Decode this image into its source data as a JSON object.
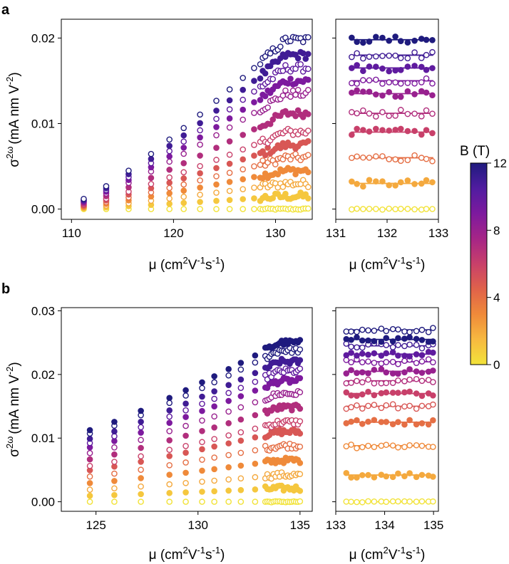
{
  "panels": [
    {
      "label": "a"
    },
    {
      "label": "b"
    }
  ],
  "axis_titles": {
    "ylabel_main": "σ",
    "ylabel_sup": "2ω",
    "ylabel_unit": "(mA nm V",
    "ylabel_unit_sup": "-2",
    "ylabel_close": ")",
    "xlabel_mu": "μ (cm",
    "xlabel_sup1": "2",
    "xlabel_mid1": "V",
    "xlabel_sup2": "-1",
    "xlabel_mid2": "s",
    "xlabel_sup3": "-1",
    "xlabel_close": ")"
  },
  "colorbar": {
    "title": "B (T)",
    "ticks": [
      "0",
      "4",
      "8",
      "12"
    ],
    "tick_values": [
      0,
      4,
      8,
      12
    ],
    "range": [
      0,
      12
    ],
    "colors": [
      "#f2e33a",
      "#f7b940",
      "#ef8a3a",
      "#e0624a",
      "#c8406a",
      "#a62587",
      "#7d1a9e",
      "#501ca0",
      "#1f1b7e"
    ]
  },
  "chart_data": [
    {
      "panel": "a",
      "side": "main",
      "type": "scatter",
      "xlim": [
        109,
        133.6
      ],
      "ylim": [
        -0.0012,
        0.0222
      ],
      "xticks": [
        110,
        120,
        130
      ],
      "xtick_labels": [
        "110",
        "120",
        "130"
      ],
      "yticks": [
        0,
        0.01,
        0.02
      ],
      "ytick_labels": [
        "0.00",
        "0.01",
        "0.02"
      ],
      "B_levels": [
        0,
        1,
        2,
        3,
        4,
        5,
        6,
        7,
        8,
        9,
        10,
        11,
        12
      ],
      "x_sparse": [
        111.2,
        113.4,
        115.6,
        117.8,
        119.6,
        121.0,
        122.6,
        124.2,
        125.5,
        126.8,
        127.9
      ],
      "x_dense_range": [
        128.5,
        133.2
      ],
      "x_dense_count": 20,
      "plateau_values": [
        0.0,
        0.0015,
        0.003,
        0.0045,
        0.006,
        0.0075,
        0.009,
        0.0112,
        0.0135,
        0.015,
        0.0165,
        0.018,
        0.0198
      ],
      "sparse_slope_start": 111.2,
      "sparse_slope_end": 131.0,
      "sparse_min_fraction": 0.06
    },
    {
      "panel": "a",
      "side": "right",
      "type": "scatter_with_fit",
      "xlim": [
        131,
        133
      ],
      "ylim": [
        -0.0012,
        0.0222
      ],
      "xticks": [
        131,
        132,
        133
      ],
      "xtick_labels": [
        "131",
        "132",
        "133"
      ],
      "B_levels": [
        0,
        2,
        4,
        6,
        7,
        8,
        9,
        10,
        11,
        12
      ],
      "x_range": [
        131.3,
        132.9
      ],
      "count": 14,
      "fit_values": [
        0.0,
        0.003,
        0.006,
        0.009,
        0.0112,
        0.0135,
        0.015,
        0.0165,
        0.018,
        0.0198
      ]
    },
    {
      "panel": "b",
      "side": "main",
      "type": "scatter",
      "xlim": [
        123.3,
        135.6
      ],
      "ylim": [
        -0.0015,
        0.0305
      ],
      "xticks": [
        125,
        130,
        135
      ],
      "xtick_labels": [
        "125",
        "130",
        "135"
      ],
      "yticks": [
        0,
        0.01,
        0.02,
        0.03
      ],
      "ytick_labels": [
        "0.00",
        "0.01",
        "0.02",
        "0.03"
      ],
      "B_levels": [
        0,
        1,
        2,
        3,
        4,
        5,
        6,
        7,
        8,
        9,
        10,
        11,
        12,
        12.5
      ],
      "x_sparse": [
        124.7,
        125.9,
        127.2,
        128.6,
        129.4,
        130.2,
        130.8,
        131.5,
        132.1,
        132.8
      ],
      "x_dense_range": [
        133.3,
        135.0
      ],
      "x_dense_count": 18,
      "plateau_values": [
        0.0,
        0.0021,
        0.0042,
        0.0065,
        0.0088,
        0.011,
        0.0125,
        0.0148,
        0.017,
        0.019,
        0.0205,
        0.022,
        0.0238,
        0.025
      ],
      "sparse_slope_start": 124.7,
      "sparse_slope_end": 134.0,
      "sparse_min_fraction": 0.45
    },
    {
      "panel": "b",
      "side": "right",
      "type": "scatter_with_fit",
      "xlim": [
        133,
        135.1
      ],
      "ylim": [
        -0.0015,
        0.0305
      ],
      "xticks": [
        133,
        134,
        135
      ],
      "xtick_labels": [
        "133",
        "134",
        "135"
      ],
      "B_levels": [
        0,
        2,
        3,
        4,
        5,
        6,
        7,
        8,
        9,
        10,
        11,
        12,
        12.5
      ],
      "x_range": [
        133.2,
        135.0
      ],
      "count": 16,
      "fit_values": [
        0.0,
        0.0042,
        0.0088,
        0.0125,
        0.015,
        0.017,
        0.019,
        0.0205,
        0.022,
        0.0232,
        0.0245,
        0.0255,
        0.027
      ]
    }
  ]
}
